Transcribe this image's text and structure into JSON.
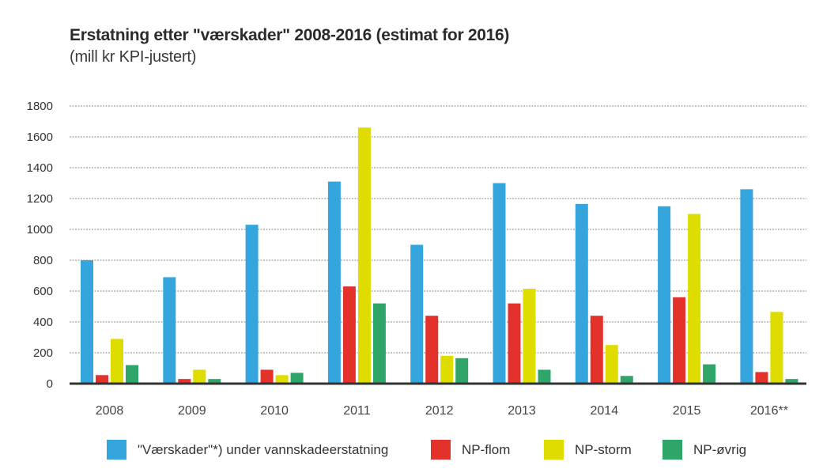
{
  "chart_data": {
    "type": "bar",
    "title": "Erstatning etter \"værskader\" 2008-2016 (estimat for 2016)",
    "subtitle": "(mill kr KPI-justert)",
    "xlabel": "",
    "ylabel": "",
    "ylim": [
      0,
      1800
    ],
    "yticks": [
      0,
      200,
      400,
      600,
      800,
      1000,
      1200,
      1400,
      1600,
      1800
    ],
    "grid": true,
    "legend_position": "bottom",
    "categories": [
      "2008",
      "2009",
      "2010",
      "2011",
      "2012",
      "2013",
      "2014",
      "2015",
      "2016**"
    ],
    "series": [
      {
        "name": "\"Værskader\"*) under vannskadeerstatning",
        "color": "#34a6dd",
        "values": [
          800,
          690,
          1030,
          1310,
          900,
          1300,
          1165,
          1150,
          1260
        ]
      },
      {
        "name": "NP-flom",
        "color": "#e2322b",
        "values": [
          55,
          30,
          90,
          630,
          440,
          520,
          440,
          560,
          75
        ]
      },
      {
        "name": "NP-storm",
        "color": "#dfdc00",
        "values": [
          290,
          90,
          55,
          1660,
          180,
          615,
          250,
          1100,
          465
        ]
      },
      {
        "name": "NP-øvrig",
        "color": "#2fa56a",
        "values": [
          120,
          30,
          70,
          520,
          165,
          90,
          50,
          125,
          30
        ]
      }
    ]
  }
}
